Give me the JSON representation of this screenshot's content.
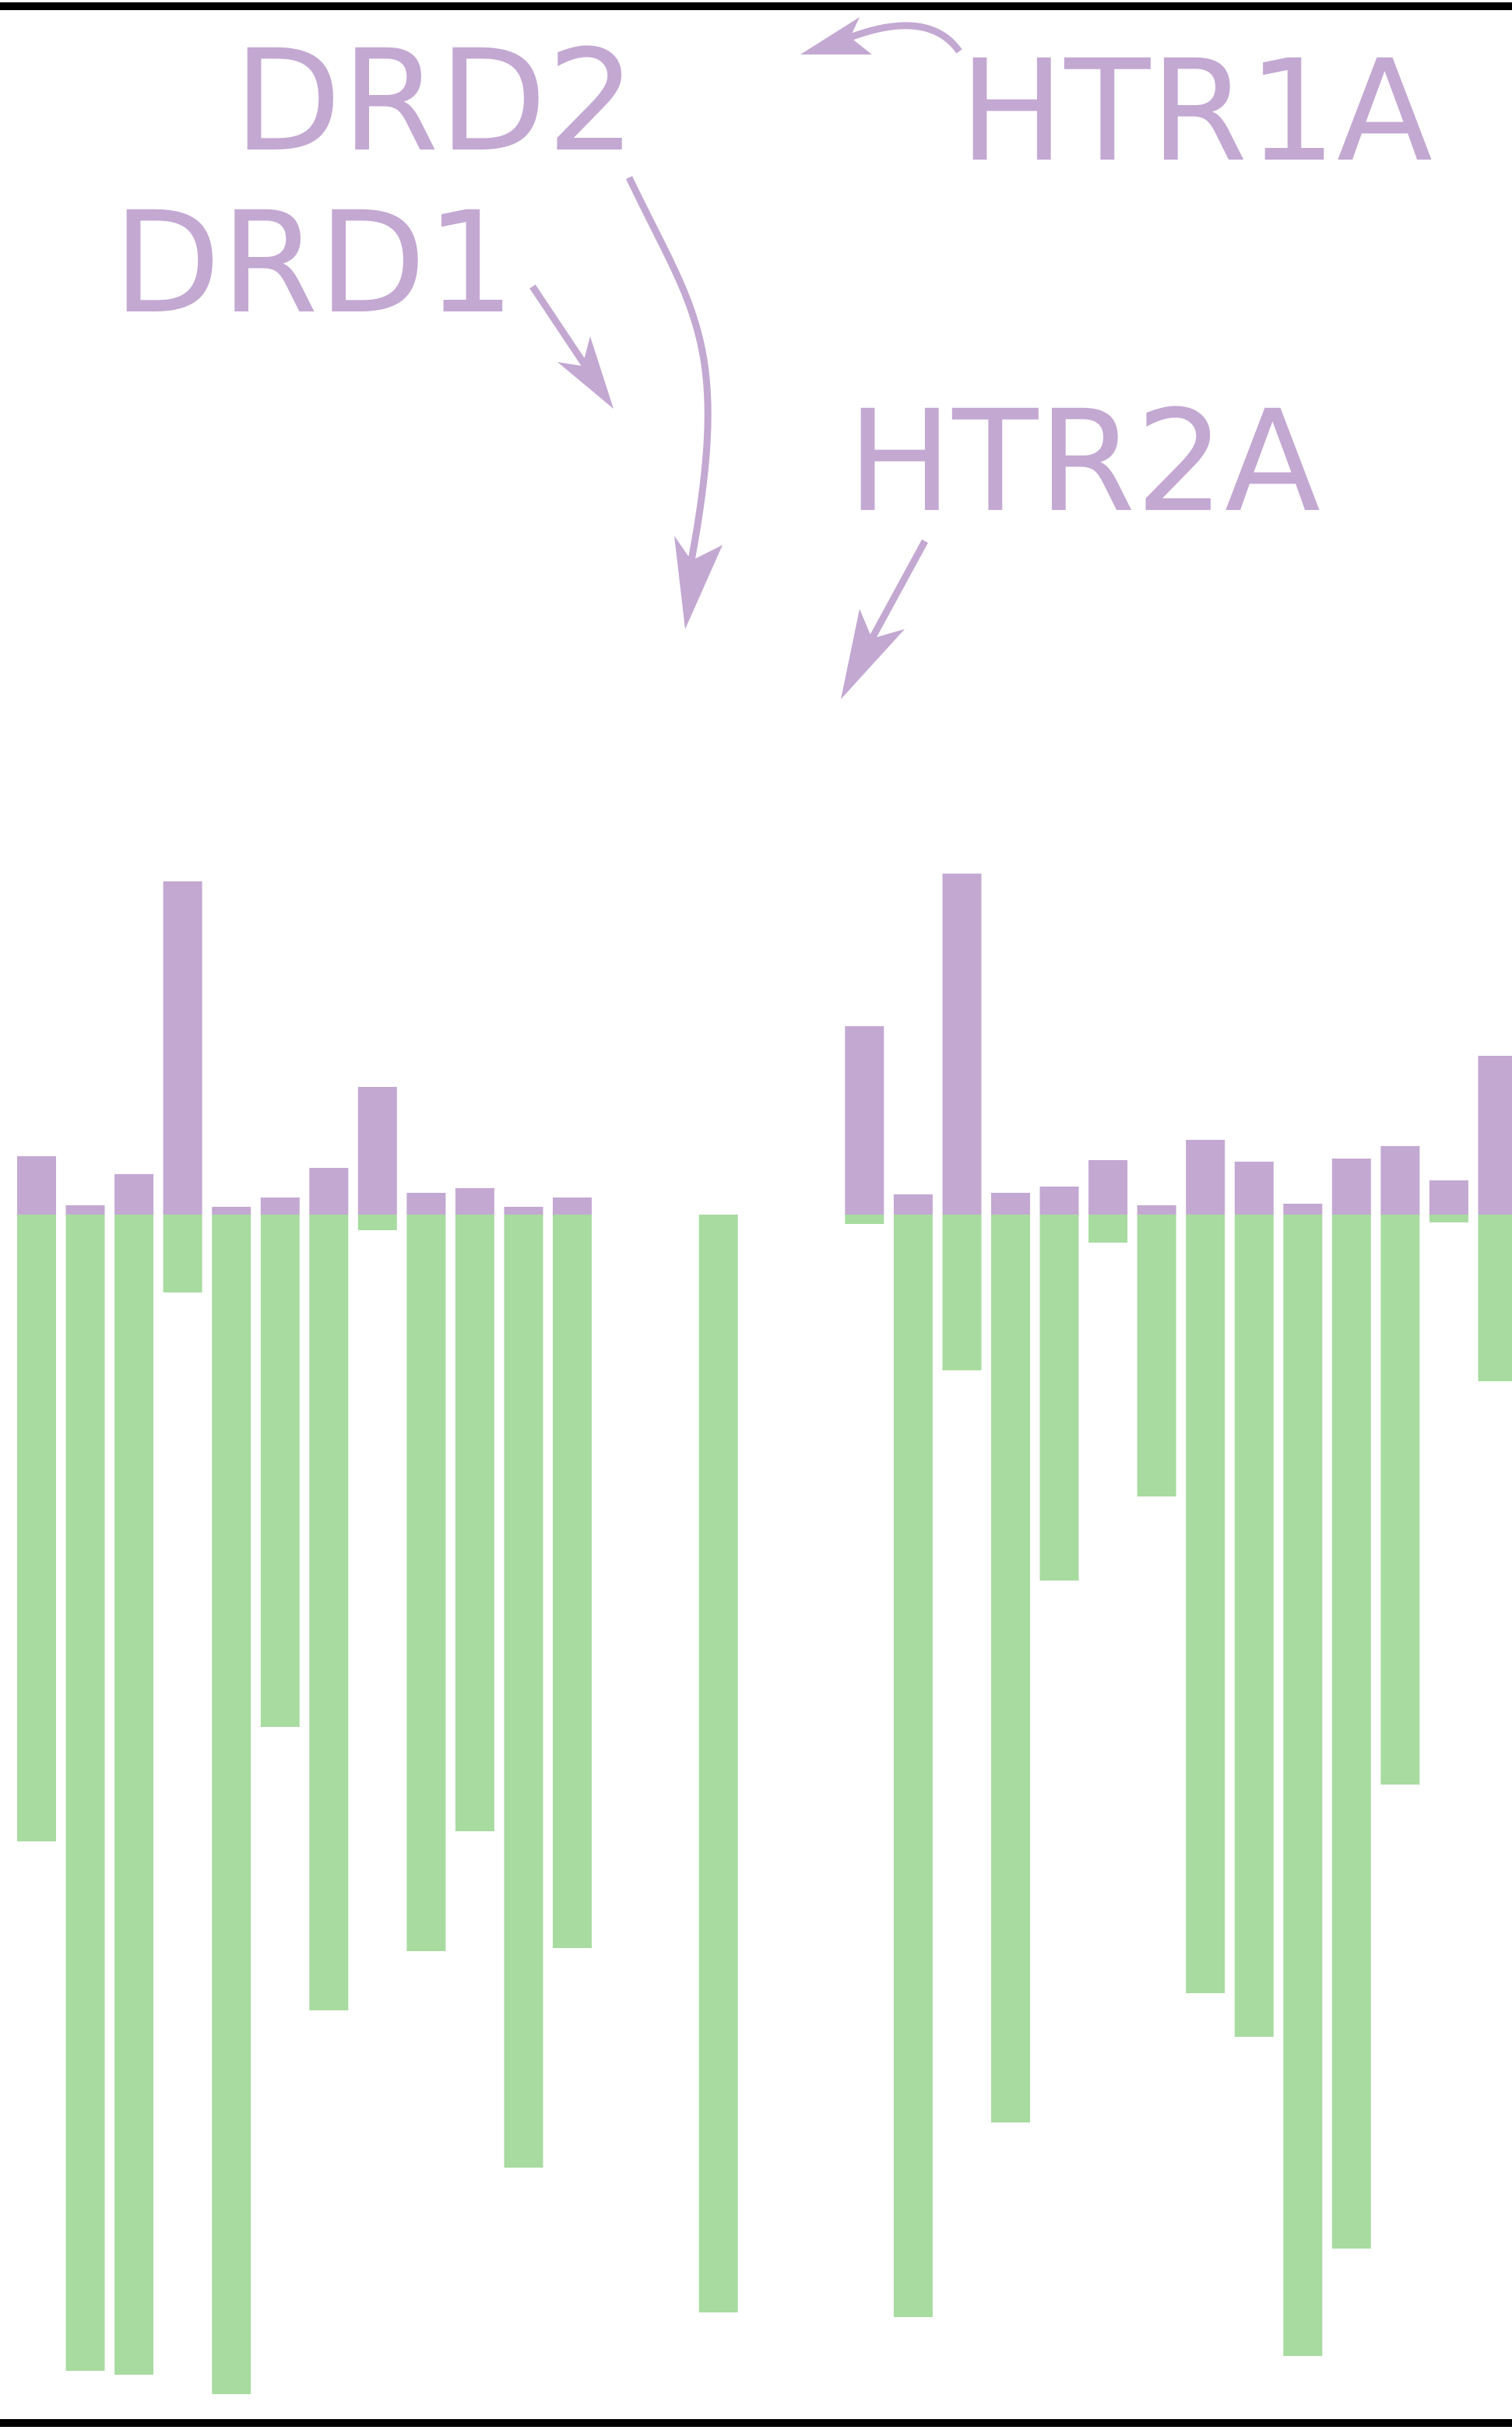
{
  "colors": {
    "positive": "#c3a8d2",
    "negative": "#a8dba0",
    "frame": "#000000",
    "annotation": "#c3a8d2"
  },
  "chart_data": {
    "type": "bar",
    "title": "",
    "xlabel": "",
    "ylabel": "",
    "ylim": [
      -1.545,
      1.505
    ],
    "grid": false,
    "legend": "none",
    "series": [
      {
        "values": [
          0.075,
          0.012,
          0.052,
          0.428,
          0.01,
          0.022,
          0.06,
          0.164,
          0.028,
          0.034,
          0.01,
          0.022,
          0.0,
          0.0,
          0.0,
          0.0,
          0.0,
          0.242,
          0.026,
          0.438,
          0.028,
          0.036,
          0.07,
          0.012,
          0.096,
          0.068,
          0.014,
          0.072,
          0.088,
          0.044,
          0.204
        ]
      },
      {
        "values": [
          -0.805,
          -1.485,
          -1.49,
          -0.1,
          -1.515,
          -0.658,
          -1.022,
          -0.02,
          -0.946,
          -0.792,
          -1.224,
          -0.942,
          0.0,
          0.0,
          -1.41,
          0.0,
          0.0,
          -0.012,
          -1.416,
          -0.2,
          -1.166,
          -0.47,
          -0.036,
          -0.362,
          -1.0,
          -1.056,
          -1.466,
          -1.328,
          -0.732,
          -0.01,
          -0.214
        ]
      }
    ],
    "annotations": [
      {
        "label": "DRD1",
        "bar_index": 12,
        "value": 1.0
      },
      {
        "label": "DRD2",
        "bar_index": 13,
        "value": 0.735
      },
      {
        "label": "HTR1A",
        "bar_index": 15,
        "value": 1.485
      },
      {
        "label": "HTR2A",
        "bar_index": 16,
        "value": 0.645
      }
    ]
  }
}
